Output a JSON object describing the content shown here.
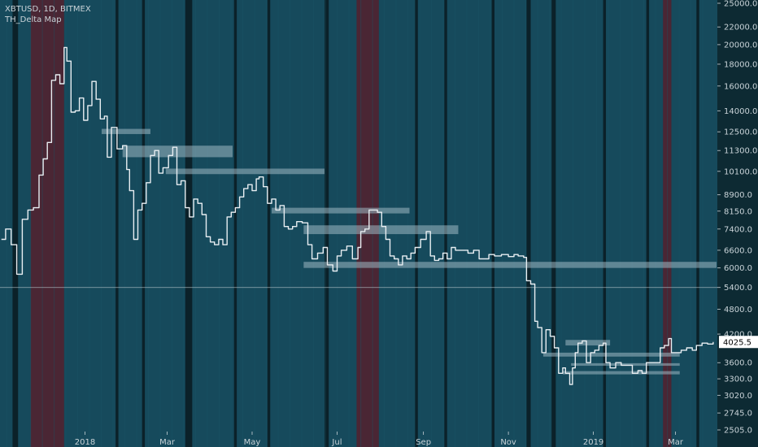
{
  "header": {
    "symbol_line": "XBTUSD, 1D, BITMEX",
    "indicator_name": "TH_Delta Map"
  },
  "colors": {
    "background": "#0d2a33",
    "band_blue": "#164a5c",
    "band_dark": "#0b2129",
    "band_red": "#4a2634",
    "price_line": "#e8eef2",
    "zone": "#9fb8c2",
    "axis_text": "#c9d3d8",
    "price_tag_bg": "#ffffff",
    "price_tag_text": "#000000"
  },
  "chart_data": {
    "type": "line",
    "title": "",
    "xlabel": "",
    "ylabel": "",
    "ylim": [
      2505,
      25000
    ],
    "yscale": "log",
    "x_tick_labels": [
      {
        "label": "2018",
        "date": "2018-01-01"
      },
      {
        "label": "Mar",
        "date": "2018-03-01"
      },
      {
        "label": "May",
        "date": "2018-05-01"
      },
      {
        "label": "Jul",
        "date": "2018-07-01"
      },
      {
        "label": "Sep",
        "date": "2018-09-01"
      },
      {
        "label": "Nov",
        "date": "2018-11-01"
      },
      {
        "label": "2019",
        "date": "2019-01-01"
      },
      {
        "label": "Mar",
        "date": "2019-03-01"
      }
    ],
    "y_tick_labels": [
      "25000.0",
      "22000.0",
      "20000.0",
      "18000.0",
      "16000.0",
      "14000.0",
      "12500.0",
      "11300.0",
      "10100.0",
      "8900.0",
      "8150.0",
      "7400.0",
      "6600.0",
      "6000.0",
      "5400.0",
      "4800.0",
      "4200.0",
      "3600.0",
      "3300.0",
      "3020.0",
      "2745.0",
      "2505.0"
    ],
    "last_price_label": "4025.5",
    "last_price": 4025.5,
    "horizontal_line": 5400,
    "series": [
      {
        "points": [
          [
            "2017-11-02",
            7000
          ],
          [
            "2017-11-05",
            7400
          ],
          [
            "2017-11-09",
            6800
          ],
          [
            "2017-11-13",
            5800
          ],
          [
            "2017-11-17",
            7800
          ],
          [
            "2017-11-21",
            8200
          ],
          [
            "2017-11-25",
            8300
          ],
          [
            "2017-11-29",
            9900
          ],
          [
            "2017-12-02",
            10800
          ],
          [
            "2017-12-05",
            11800
          ],
          [
            "2017-12-08",
            16500
          ],
          [
            "2017-12-11",
            17000
          ],
          [
            "2017-12-14",
            16200
          ],
          [
            "2017-12-17",
            19700
          ],
          [
            "2017-12-19",
            18300
          ],
          [
            "2017-12-22",
            13900
          ],
          [
            "2017-12-25",
            14000
          ],
          [
            "2017-12-28",
            15000
          ],
          [
            "2017-12-31",
            13300
          ],
          [
            "2018-01-03",
            14400
          ],
          [
            "2018-01-06",
            16400
          ],
          [
            "2018-01-09",
            14900
          ],
          [
            "2018-01-12",
            13400
          ],
          [
            "2018-01-15",
            13600
          ],
          [
            "2018-01-17",
            10900
          ],
          [
            "2018-01-20",
            12800
          ],
          [
            "2018-01-24",
            11400
          ],
          [
            "2018-01-28",
            11600
          ],
          [
            "2018-01-31",
            10200
          ],
          [
            "2018-02-02",
            9100
          ],
          [
            "2018-02-05",
            7000
          ],
          [
            "2018-02-08",
            8200
          ],
          [
            "2018-02-11",
            8500
          ],
          [
            "2018-02-14",
            9500
          ],
          [
            "2018-02-17",
            11000
          ],
          [
            "2018-02-20",
            11300
          ],
          [
            "2018-02-23",
            10000
          ],
          [
            "2018-02-26",
            10300
          ],
          [
            "2018-03-02",
            11000
          ],
          [
            "2018-03-05",
            11500
          ],
          [
            "2018-03-08",
            9400
          ],
          [
            "2018-03-11",
            9600
          ],
          [
            "2018-03-14",
            8300
          ],
          [
            "2018-03-17",
            7900
          ],
          [
            "2018-03-20",
            8700
          ],
          [
            "2018-03-23",
            8500
          ],
          [
            "2018-03-26",
            8000
          ],
          [
            "2018-03-29",
            7100
          ],
          [
            "2018-04-01",
            6900
          ],
          [
            "2018-04-04",
            6800
          ],
          [
            "2018-04-07",
            7000
          ],
          [
            "2018-04-10",
            6800
          ],
          [
            "2018-04-13",
            7900
          ],
          [
            "2018-04-16",
            8100
          ],
          [
            "2018-04-19",
            8300
          ],
          [
            "2018-04-22",
            8800
          ],
          [
            "2018-04-25",
            9200
          ],
          [
            "2018-04-28",
            9400
          ],
          [
            "2018-05-01",
            9100
          ],
          [
            "2018-05-04",
            9700
          ],
          [
            "2018-05-06",
            9800
          ],
          [
            "2018-05-09",
            9300
          ],
          [
            "2018-05-12",
            8500
          ],
          [
            "2018-05-15",
            8700
          ],
          [
            "2018-05-18",
            8200
          ],
          [
            "2018-05-21",
            8400
          ],
          [
            "2018-05-24",
            7500
          ],
          [
            "2018-05-27",
            7400
          ],
          [
            "2018-05-30",
            7500
          ],
          [
            "2018-06-02",
            7700
          ],
          [
            "2018-06-06",
            7650
          ],
          [
            "2018-06-10",
            6800
          ],
          [
            "2018-06-13",
            6300
          ],
          [
            "2018-06-17",
            6500
          ],
          [
            "2018-06-21",
            6700
          ],
          [
            "2018-06-24",
            6100
          ],
          [
            "2018-06-28",
            5900
          ],
          [
            "2018-07-01",
            6400
          ],
          [
            "2018-07-04",
            6600
          ],
          [
            "2018-07-08",
            6750
          ],
          [
            "2018-07-12",
            6300
          ],
          [
            "2018-07-16",
            6700
          ],
          [
            "2018-07-18",
            7300
          ],
          [
            "2018-07-21",
            7400
          ],
          [
            "2018-07-24",
            8200
          ],
          [
            "2018-07-27",
            8200
          ],
          [
            "2018-07-30",
            8100
          ],
          [
            "2018-08-02",
            7500
          ],
          [
            "2018-08-05",
            7000
          ],
          [
            "2018-08-08",
            6400
          ],
          [
            "2018-08-11",
            6300
          ],
          [
            "2018-08-14",
            6100
          ],
          [
            "2018-08-17",
            6400
          ],
          [
            "2018-08-20",
            6300
          ],
          [
            "2018-08-23",
            6500
          ],
          [
            "2018-08-26",
            6700
          ],
          [
            "2018-08-30",
            7000
          ],
          [
            "2018-09-03",
            7300
          ],
          [
            "2018-09-06",
            6400
          ],
          [
            "2018-09-09",
            6250
          ],
          [
            "2018-09-12",
            6300
          ],
          [
            "2018-09-15",
            6500
          ],
          [
            "2018-09-18",
            6300
          ],
          [
            "2018-09-21",
            6700
          ],
          [
            "2018-09-24",
            6600
          ],
          [
            "2018-09-27",
            6600
          ],
          [
            "2018-09-30",
            6600
          ],
          [
            "2018-10-03",
            6500
          ],
          [
            "2018-10-07",
            6600
          ],
          [
            "2018-10-11",
            6300
          ],
          [
            "2018-10-14",
            6300
          ],
          [
            "2018-10-18",
            6450
          ],
          [
            "2018-10-22",
            6400
          ],
          [
            "2018-10-27",
            6450
          ],
          [
            "2018-11-01",
            6380
          ],
          [
            "2018-11-05",
            6450
          ],
          [
            "2018-11-08",
            6400
          ],
          [
            "2018-11-12",
            6350
          ],
          [
            "2018-11-14",
            5600
          ],
          [
            "2018-11-17",
            5500
          ],
          [
            "2018-11-20",
            4500
          ],
          [
            "2018-11-22",
            4350
          ],
          [
            "2018-11-25",
            3800
          ],
          [
            "2018-11-28",
            4300
          ],
          [
            "2018-12-01",
            4150
          ],
          [
            "2018-12-04",
            3900
          ],
          [
            "2018-12-07",
            3400
          ],
          [
            "2018-12-10",
            3500
          ],
          [
            "2018-12-12",
            3400
          ],
          [
            "2018-12-15",
            3200
          ],
          [
            "2018-12-17",
            3500
          ],
          [
            "2018-12-19",
            3800
          ],
          [
            "2018-12-21",
            4000
          ],
          [
            "2018-12-24",
            4050
          ],
          [
            "2018-12-27",
            3600
          ],
          [
            "2018-12-30",
            3800
          ],
          [
            "2019-01-02",
            3850
          ],
          [
            "2019-01-05",
            3950
          ],
          [
            "2019-01-08",
            4000
          ],
          [
            "2019-01-10",
            3600
          ],
          [
            "2019-01-13",
            3500
          ],
          [
            "2019-01-17",
            3600
          ],
          [
            "2019-01-21",
            3550
          ],
          [
            "2019-01-25",
            3550
          ],
          [
            "2019-01-29",
            3400
          ],
          [
            "2019-02-02",
            3450
          ],
          [
            "2019-02-05",
            3400
          ],
          [
            "2019-02-08",
            3600
          ],
          [
            "2019-02-12",
            3600
          ],
          [
            "2019-02-16",
            3600
          ],
          [
            "2019-02-18",
            3900
          ],
          [
            "2019-02-21",
            3950
          ],
          [
            "2019-02-24",
            4100
          ],
          [
            "2019-02-26",
            3800
          ],
          [
            "2019-03-01",
            3800
          ],
          [
            "2019-03-05",
            3850
          ],
          [
            "2019-03-09",
            3900
          ],
          [
            "2019-03-13",
            3850
          ],
          [
            "2019-03-16",
            3950
          ],
          [
            "2019-03-20",
            4000
          ],
          [
            "2019-03-24",
            3980
          ],
          [
            "2019-03-28",
            4025.5
          ]
        ]
      }
    ],
    "zones": [
      {
        "start": "2018-01-13",
        "end": "2018-02-17",
        "low": 12350,
        "high": 12700
      },
      {
        "start": "2018-01-28",
        "end": "2018-04-17",
        "low": 10900,
        "high": 11600
      },
      {
        "start": "2018-02-28",
        "end": "2018-06-22",
        "low": 9950,
        "high": 10250
      },
      {
        "start": "2018-05-15",
        "end": "2018-08-22",
        "low": 8050,
        "high": 8300
      },
      {
        "start": "2018-06-07",
        "end": "2018-09-26",
        "low": 7200,
        "high": 7550
      },
      {
        "start": "2018-06-07",
        "end": "2019-03-31",
        "low": 6000,
        "high": 6200
      },
      {
        "start": "2018-12-12",
        "end": "2019-01-13",
        "low": 3950,
        "high": 4070
      },
      {
        "start": "2018-11-26",
        "end": "2019-03-04",
        "low": 3720,
        "high": 3800
      },
      {
        "start": "2018-12-16",
        "end": "2019-03-04",
        "low": 3540,
        "high": 3590
      },
      {
        "start": "2018-12-10",
        "end": "2019-03-04",
        "low": 3380,
        "high": 3440
      }
    ],
    "red_bands": [
      {
        "start": "2017-11-23",
        "end": "2017-12-17"
      },
      {
        "start": "2018-07-15",
        "end": "2018-07-31"
      },
      {
        "start": "2019-02-20",
        "end": "2019-02-26"
      }
    ],
    "dark_bands": [
      {
        "start": "2017-11-10",
        "end": "2017-11-14"
      },
      {
        "start": "2018-01-23",
        "end": "2018-01-25"
      },
      {
        "start": "2018-02-11",
        "end": "2018-02-13"
      },
      {
        "start": "2018-03-14",
        "end": "2018-03-19"
      },
      {
        "start": "2018-04-18",
        "end": "2018-04-20"
      },
      {
        "start": "2018-05-12",
        "end": "2018-05-14"
      },
      {
        "start": "2018-06-22",
        "end": "2018-06-25"
      },
      {
        "start": "2018-08-26",
        "end": "2018-08-28"
      },
      {
        "start": "2018-09-16",
        "end": "2018-09-18"
      },
      {
        "start": "2018-10-20",
        "end": "2018-10-22"
      },
      {
        "start": "2018-11-14",
        "end": "2018-11-17"
      },
      {
        "start": "2018-12-02",
        "end": "2018-12-05"
      },
      {
        "start": "2019-01-08",
        "end": "2019-01-10"
      },
      {
        "start": "2019-02-08",
        "end": "2019-02-10"
      },
      {
        "start": "2019-03-16",
        "end": "2019-03-18"
      }
    ],
    "grid": false
  }
}
